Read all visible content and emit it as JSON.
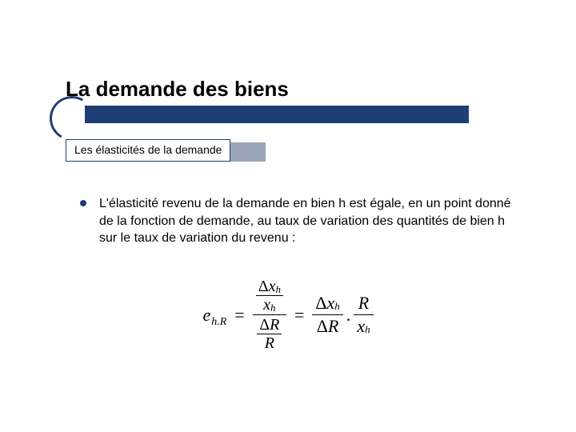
{
  "colors": {
    "accent": "#1f3e73",
    "text": "#000000",
    "background": "#ffffff",
    "shadow": "#9aa5b8"
  },
  "title": "La demande des biens",
  "subtitle": "Les élasticités de la demande",
  "body": {
    "bullet1": "L'élasticité revenu de la demande en bien h est égale, en un point donné de la fonction de demande, au taux de variation des quantités de bien h sur le taux de variation du revenu :"
  },
  "formula": {
    "lhs_e": "e",
    "lhs_sub": "h.R",
    "eq": "=",
    "delta": "Δ",
    "x": "x",
    "h": "h",
    "R": "R",
    "dot": "."
  }
}
